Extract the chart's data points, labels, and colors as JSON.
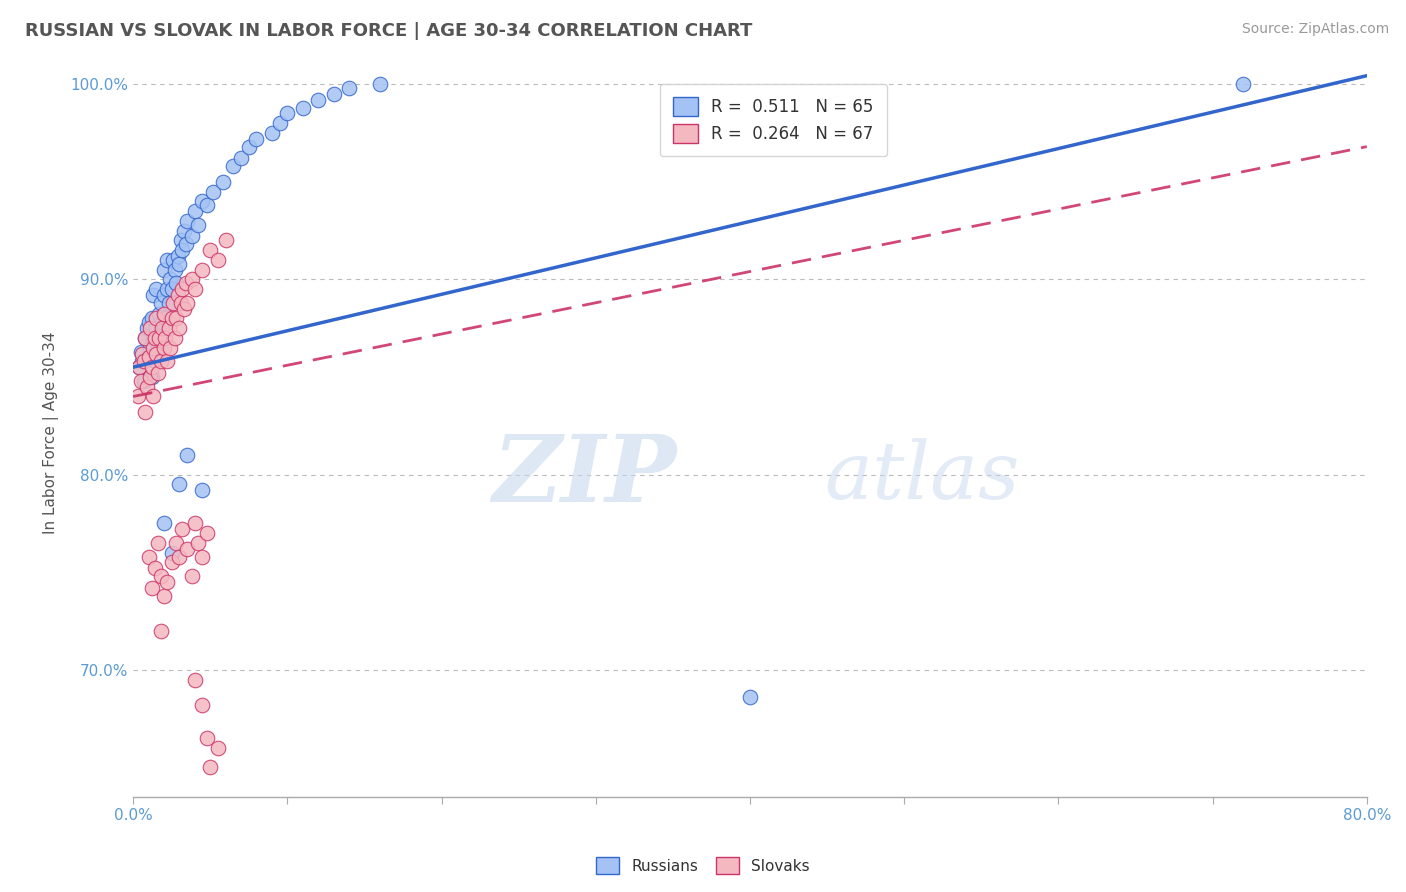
{
  "title": "RUSSIAN VS SLOVAK IN LABOR FORCE | AGE 30-34 CORRELATION CHART",
  "source_text": "Source: ZipAtlas.com",
  "ylabel": "In Labor Force | Age 30-34",
  "xlim": [
    0.0,
    0.8
  ],
  "ylim": [
    0.635,
    1.008
  ],
  "xticks": [
    0.0,
    0.1,
    0.2,
    0.3,
    0.4,
    0.5,
    0.6,
    0.7,
    0.8
  ],
  "xticklabels": [
    "0.0%",
    "",
    "",
    "",
    "",
    "",
    "",
    "",
    "80.0%"
  ],
  "yticks": [
    0.7,
    0.8,
    0.9,
    1.0
  ],
  "yticklabels": [
    "70.0%",
    "80.0%",
    "90.0%",
    "100.0%"
  ],
  "R_russian": 0.511,
  "N_russian": 65,
  "R_slovak": 0.264,
  "N_slovak": 67,
  "color_russian": "#a4c2f4",
  "color_slovak": "#f4b8c1",
  "color_russian_line": "#3366cc",
  "color_slovak_line": "#cc3366",
  "legend_label_russian": "Russians",
  "legend_label_slovak": "Slovaks",
  "watermark_zip": "ZIP",
  "watermark_atlas": "atlas",
  "russian_scatter": [
    [
      0.004,
      0.855
    ],
    [
      0.005,
      0.863
    ],
    [
      0.006,
      0.858
    ],
    [
      0.007,
      0.848
    ],
    [
      0.008,
      0.87
    ],
    [
      0.009,
      0.875
    ],
    [
      0.01,
      0.86
    ],
    [
      0.01,
      0.878
    ],
    [
      0.011,
      0.865
    ],
    [
      0.012,
      0.85
    ],
    [
      0.012,
      0.88
    ],
    [
      0.013,
      0.87
    ],
    [
      0.013,
      0.892
    ],
    [
      0.014,
      0.858
    ],
    [
      0.015,
      0.875
    ],
    [
      0.015,
      0.895
    ],
    [
      0.016,
      0.865
    ],
    [
      0.017,
      0.882
    ],
    [
      0.018,
      0.888
    ],
    [
      0.018,
      0.87
    ],
    [
      0.019,
      0.878
    ],
    [
      0.02,
      0.892
    ],
    [
      0.02,
      0.905
    ],
    [
      0.021,
      0.88
    ],
    [
      0.022,
      0.895
    ],
    [
      0.022,
      0.91
    ],
    [
      0.023,
      0.888
    ],
    [
      0.024,
      0.9
    ],
    [
      0.025,
      0.895
    ],
    [
      0.026,
      0.91
    ],
    [
      0.027,
      0.905
    ],
    [
      0.028,
      0.898
    ],
    [
      0.029,
      0.912
    ],
    [
      0.03,
      0.908
    ],
    [
      0.031,
      0.92
    ],
    [
      0.032,
      0.915
    ],
    [
      0.033,
      0.925
    ],
    [
      0.034,
      0.918
    ],
    [
      0.035,
      0.93
    ],
    [
      0.038,
      0.922
    ],
    [
      0.04,
      0.935
    ],
    [
      0.042,
      0.928
    ],
    [
      0.045,
      0.94
    ],
    [
      0.048,
      0.938
    ],
    [
      0.052,
      0.945
    ],
    [
      0.058,
      0.95
    ],
    [
      0.065,
      0.958
    ],
    [
      0.07,
      0.962
    ],
    [
      0.075,
      0.968
    ],
    [
      0.08,
      0.972
    ],
    [
      0.09,
      0.975
    ],
    [
      0.095,
      0.98
    ],
    [
      0.1,
      0.985
    ],
    [
      0.11,
      0.988
    ],
    [
      0.12,
      0.992
    ],
    [
      0.13,
      0.995
    ],
    [
      0.14,
      0.998
    ],
    [
      0.16,
      1.0
    ],
    [
      0.02,
      0.775
    ],
    [
      0.025,
      0.76
    ],
    [
      0.03,
      0.795
    ],
    [
      0.035,
      0.81
    ],
    [
      0.045,
      0.792
    ],
    [
      0.4,
      0.686
    ],
    [
      0.72,
      1.0
    ]
  ],
  "slovak_scatter": [
    [
      0.003,
      0.84
    ],
    [
      0.004,
      0.855
    ],
    [
      0.005,
      0.848
    ],
    [
      0.006,
      0.862
    ],
    [
      0.007,
      0.858
    ],
    [
      0.008,
      0.832
    ],
    [
      0.008,
      0.87
    ],
    [
      0.009,
      0.845
    ],
    [
      0.01,
      0.86
    ],
    [
      0.011,
      0.85
    ],
    [
      0.011,
      0.875
    ],
    [
      0.012,
      0.855
    ],
    [
      0.013,
      0.865
    ],
    [
      0.013,
      0.84
    ],
    [
      0.014,
      0.87
    ],
    [
      0.015,
      0.862
    ],
    [
      0.015,
      0.88
    ],
    [
      0.016,
      0.852
    ],
    [
      0.017,
      0.87
    ],
    [
      0.018,
      0.858
    ],
    [
      0.019,
      0.875
    ],
    [
      0.02,
      0.865
    ],
    [
      0.02,
      0.882
    ],
    [
      0.021,
      0.87
    ],
    [
      0.022,
      0.858
    ],
    [
      0.023,
      0.875
    ],
    [
      0.024,
      0.865
    ],
    [
      0.025,
      0.88
    ],
    [
      0.026,
      0.888
    ],
    [
      0.027,
      0.87
    ],
    [
      0.028,
      0.88
    ],
    [
      0.029,
      0.892
    ],
    [
      0.03,
      0.875
    ],
    [
      0.031,
      0.888
    ],
    [
      0.032,
      0.895
    ],
    [
      0.033,
      0.885
    ],
    [
      0.034,
      0.898
    ],
    [
      0.035,
      0.888
    ],
    [
      0.038,
      0.9
    ],
    [
      0.04,
      0.895
    ],
    [
      0.045,
      0.905
    ],
    [
      0.05,
      0.915
    ],
    [
      0.055,
      0.91
    ],
    [
      0.06,
      0.92
    ],
    [
      0.01,
      0.758
    ],
    [
      0.012,
      0.742
    ],
    [
      0.014,
      0.752
    ],
    [
      0.016,
      0.765
    ],
    [
      0.018,
      0.748
    ],
    [
      0.018,
      0.72
    ],
    [
      0.02,
      0.738
    ],
    [
      0.022,
      0.745
    ],
    [
      0.025,
      0.755
    ],
    [
      0.028,
      0.765
    ],
    [
      0.03,
      0.758
    ],
    [
      0.032,
      0.772
    ],
    [
      0.035,
      0.762
    ],
    [
      0.04,
      0.775
    ],
    [
      0.038,
      0.748
    ],
    [
      0.042,
      0.765
    ],
    [
      0.045,
      0.758
    ],
    [
      0.048,
      0.77
    ],
    [
      0.04,
      0.695
    ],
    [
      0.045,
      0.682
    ],
    [
      0.048,
      0.665
    ],
    [
      0.05,
      0.65
    ],
    [
      0.055,
      0.66
    ]
  ],
  "trend_line_russian": [
    [
      0.0,
      0.855
    ],
    [
      0.75,
      0.995
    ]
  ],
  "trend_line_slovak": [
    [
      0.0,
      0.84
    ],
    [
      0.75,
      0.96
    ]
  ]
}
